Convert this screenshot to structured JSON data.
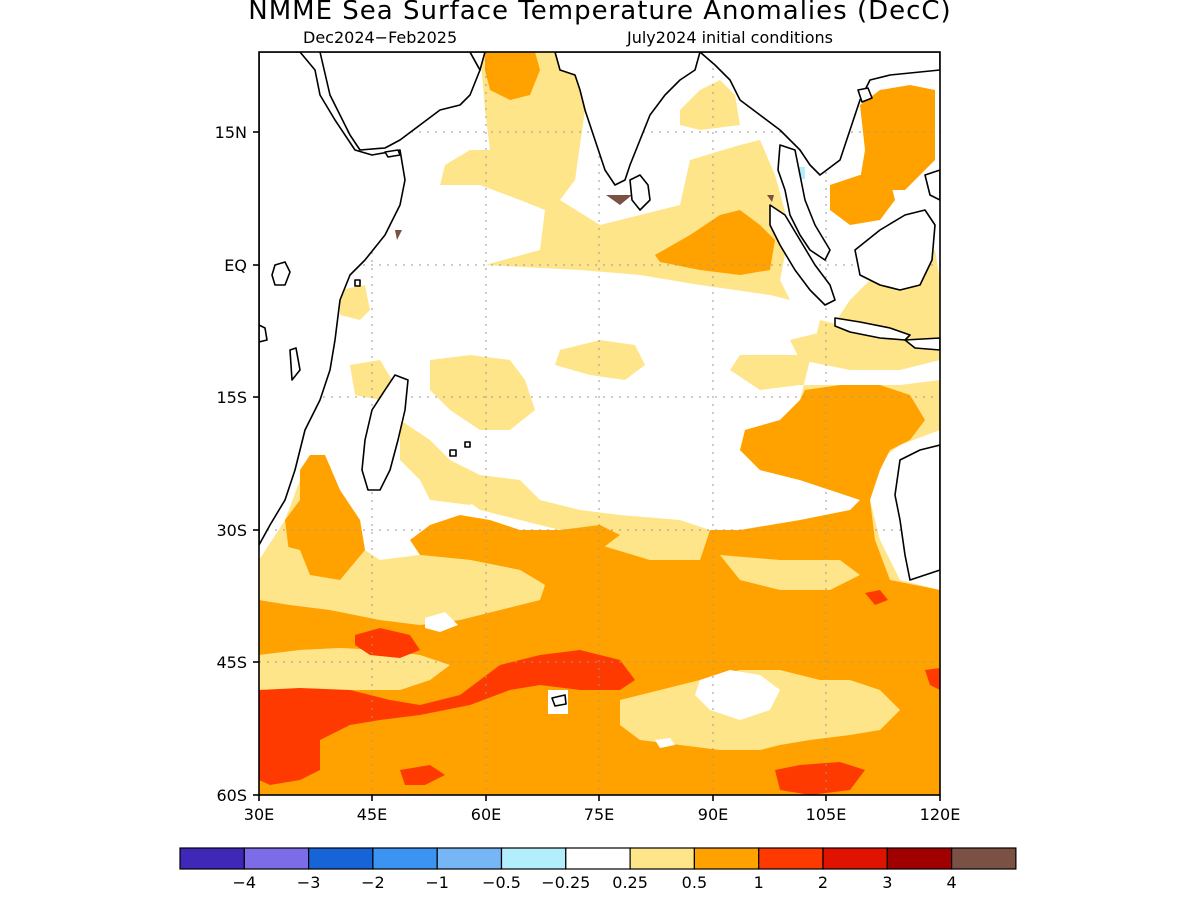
{
  "title": "NMME Sea Surface Temperature Anomalies (DecC)",
  "subtitle_left": "Dec2024−Feb2025",
  "subtitle_right": "July2024 initial conditions",
  "map": {
    "lon_range": [
      30,
      120
    ],
    "lat_range": [
      -60,
      24
    ],
    "lon_ticks": [
      "30E",
      "45E",
      "60E",
      "75E",
      "90E",
      "105E",
      "120E"
    ],
    "lat_ticks": [
      "15N",
      "EQ",
      "15S",
      "30S",
      "45S",
      "60S"
    ],
    "grid": "dotted",
    "land_color": "#ffffff",
    "coastline_color": "#000000"
  },
  "colorbar": {
    "colors": [
      "#3f28b8",
      "#7d6ce8",
      "#1763d8",
      "#3b93f2",
      "#76b5f6",
      "#b2eefb",
      "#ffffff",
      "#ffe589",
      "#ffa200",
      "#ff3a00",
      "#df1300",
      "#a10000",
      "#7b5045"
    ],
    "labels": [
      "−4",
      "−3",
      "−2",
      "−1",
      "−0.5",
      "−0.25",
      "0.25",
      "0.5",
      "1",
      "2",
      "3",
      "4"
    ]
  }
}
